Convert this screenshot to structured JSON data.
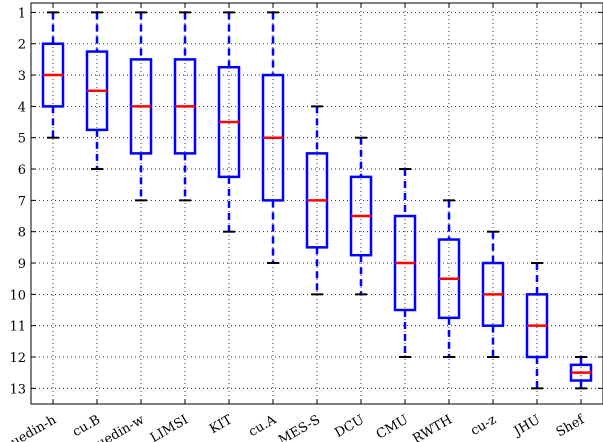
{
  "chart_data": {
    "type": "box",
    "title": "",
    "xlabel": "",
    "ylabel": "",
    "ylim": [
      0.7,
      13.5
    ],
    "y_inverted": true,
    "y_ticks": [
      1,
      2,
      3,
      4,
      5,
      6,
      7,
      8,
      9,
      10,
      11,
      12,
      13
    ],
    "grid": true,
    "grid_style": "dotted",
    "box_color": "#0000ff",
    "median_color": "#ff0000",
    "categories": [
      "uedin-h",
      "cu.B",
      "uedin-w",
      "LIMSI",
      "KIT",
      "cu.A",
      "MES-S",
      "DCU",
      "CMU",
      "RWTH",
      "cu-z",
      "JHU",
      "Shef"
    ],
    "boxes": [
      {
        "label": "uedin-h",
        "whisker_low": 1,
        "q1": 2,
        "median": 3,
        "q3": 4,
        "whisker_high": 5
      },
      {
        "label": "cu.B",
        "whisker_low": 1,
        "q1": 2.25,
        "median": 3.5,
        "q3": 4.75,
        "whisker_high": 6
      },
      {
        "label": "uedin-w",
        "whisker_low": 1,
        "q1": 2.5,
        "median": 4,
        "q3": 5.5,
        "whisker_high": 7
      },
      {
        "label": "LIMSI",
        "whisker_low": 1,
        "q1": 2.5,
        "median": 4,
        "q3": 5.5,
        "whisker_high": 7
      },
      {
        "label": "KIT",
        "whisker_low": 1,
        "q1": 2.75,
        "median": 4.5,
        "q3": 6.25,
        "whisker_high": 8
      },
      {
        "label": "cu.A",
        "whisker_low": 1,
        "q1": 3,
        "median": 5,
        "q3": 7,
        "whisker_high": 9
      },
      {
        "label": "MES-S",
        "whisker_low": 4,
        "q1": 5.5,
        "median": 7,
        "q3": 8.5,
        "whisker_high": 10
      },
      {
        "label": "DCU",
        "whisker_low": 5,
        "q1": 6.25,
        "median": 7.5,
        "q3": 8.75,
        "whisker_high": 10
      },
      {
        "label": "CMU",
        "whisker_low": 6,
        "q1": 7.5,
        "median": 9,
        "q3": 10.5,
        "whisker_high": 12
      },
      {
        "label": "RWTH",
        "whisker_low": 7,
        "q1": 8.25,
        "median": 9.5,
        "q3": 10.75,
        "whisker_high": 12
      },
      {
        "label": "cu-z",
        "whisker_low": 8,
        "q1": 9,
        "median": 10,
        "q3": 11,
        "whisker_high": 12
      },
      {
        "label": "JHU",
        "whisker_low": 9,
        "q1": 10,
        "median": 11,
        "q3": 12,
        "whisker_high": 13
      },
      {
        "label": "Shef",
        "whisker_low": 12,
        "q1": 12.25,
        "median": 12.5,
        "q3": 12.75,
        "whisker_high": 13
      }
    ]
  }
}
